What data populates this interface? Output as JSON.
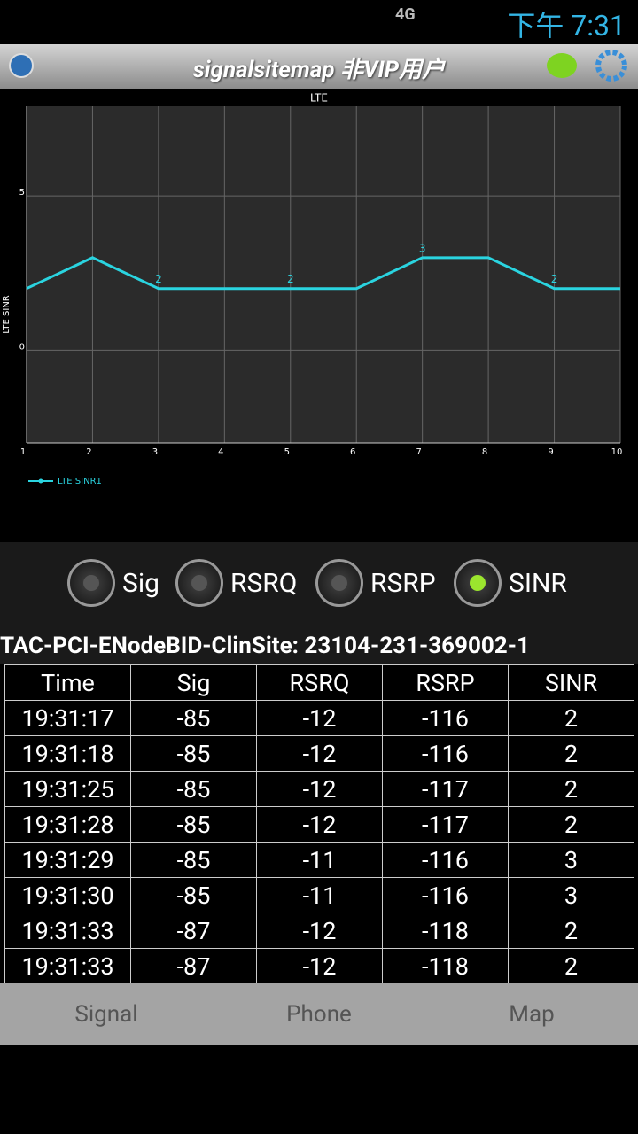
{
  "status_bar": {
    "network": "4G",
    "time": "下午 7:31"
  },
  "app_bar": {
    "title": "signalsitemap 非VIP用户"
  },
  "chart_data": {
    "type": "line",
    "title": "LTE",
    "y_label": "LTE SINR",
    "x": [
      1,
      2,
      3,
      4,
      5,
      6,
      7,
      8,
      9,
      10
    ],
    "series": [
      {
        "name": "LTE SINR1",
        "color": "#2ad4e0",
        "values": [
          2,
          3,
          2,
          2,
          2,
          2,
          3,
          3,
          2,
          2
        ]
      }
    ],
    "xlim": [
      1,
      10
    ],
    "xticks": [
      1,
      2,
      3,
      4,
      5,
      6,
      7,
      8,
      9,
      10
    ],
    "ylim": [
      -3,
      7.9
    ],
    "yticks": [
      0,
      5
    ],
    "grid": true
  },
  "radios": [
    {
      "label": "Sig",
      "selected": false
    },
    {
      "label": "RSRQ",
      "selected": false
    },
    {
      "label": "RSRP",
      "selected": false
    },
    {
      "label": "SINR",
      "selected": true
    }
  ],
  "site_info": "TAC-PCI-ENodeBID-ClinSite: 23104-231-369002-1",
  "table": {
    "header": [
      "Time",
      "Sig",
      "RSRQ",
      "RSRP",
      "SINR"
    ],
    "rows": [
      [
        "19:31:17",
        -85,
        -12,
        -116,
        2
      ],
      [
        "19:31:18",
        -85,
        -12,
        -116,
        2
      ],
      [
        "19:31:25",
        -85,
        -12,
        -117,
        2
      ],
      [
        "19:31:28",
        -85,
        -12,
        -117,
        2
      ],
      [
        "19:31:29",
        -85,
        -11,
        -116,
        3
      ],
      [
        "19:31:30",
        -85,
        -11,
        -116,
        3
      ],
      [
        "19:31:33",
        -87,
        -12,
        -118,
        2
      ],
      [
        "19:31:33",
        -87,
        -12,
        -118,
        2
      ]
    ]
  },
  "tabs": [
    "Signal",
    "Phone",
    "Map"
  ]
}
